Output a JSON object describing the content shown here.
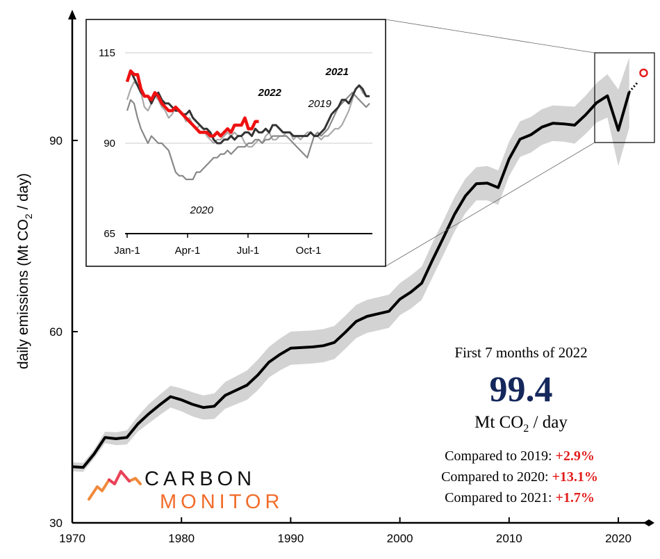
{
  "chart_data": [
    {
      "type": "line",
      "ylabel_prefix": "daily emissions (Mt CO",
      "ylabel_sub": "2",
      "ylabel_suffix": " / day)",
      "xlim": [
        1970,
        2022
      ],
      "ylim": [
        30,
        110
      ],
      "x_ticks": [
        1970,
        1980,
        1990,
        2000,
        2010,
        2020
      ],
      "y_ticks": [
        30,
        60,
        90
      ],
      "series": [
        {
          "x": [
            1970,
            1971,
            1972,
            1973,
            1974,
            1975,
            1976,
            1977,
            1978,
            1979,
            1980,
            1981,
            1982,
            1983,
            1984,
            1985,
            1986,
            1987,
            1988,
            1989,
            1990,
            1991,
            1992,
            1993,
            1994,
            1995,
            1996,
            1997,
            1998,
            1999,
            2000,
            2001,
            2002,
            2003,
            2004,
            2005,
            2006,
            2007,
            2008,
            2009,
            2010,
            2011,
            2012,
            2013,
            2014,
            2015,
            2016,
            2017,
            2018,
            2019,
            2020,
            2021
          ],
          "values": [
            38.8,
            38.7,
            40.8,
            43.4,
            43.2,
            43.4,
            45.5,
            47.1,
            48.5,
            49.8,
            49.3,
            48.6,
            48.1,
            48.3,
            50.0,
            50.8,
            51.6,
            53.2,
            55.2,
            56.4,
            57.4,
            57.5,
            57.6,
            57.8,
            58.3,
            59.9,
            61.6,
            62.4,
            62.8,
            63.2,
            65.1,
            66.2,
            67.6,
            71.3,
            74.8,
            78.4,
            81.3,
            83.2,
            83.3,
            82.6,
            87.1,
            90.2,
            90.9,
            92.1,
            92.7,
            92.6,
            92.4,
            94.0,
            95.9,
            97.0,
            91.6,
            97.6
          ]
        }
      ],
      "band_upper": [
        39.5,
        39.4,
        41.5,
        44.3,
        44.2,
        44.5,
        46.7,
        48.6,
        50.1,
        51.5,
        51.1,
        50.5,
        50.0,
        50.3,
        52.1,
        53.0,
        53.9,
        55.6,
        57.6,
        58.9,
        60.0,
        60.1,
        60.2,
        60.4,
        60.9,
        62.5,
        64.2,
        65.0,
        65.4,
        65.8,
        67.6,
        68.8,
        70.2,
        74.0,
        77.5,
        81.1,
        84.0,
        85.8,
        86.0,
        85.3,
        89.8,
        93.0,
        93.7,
        94.9,
        95.5,
        95.4,
        95.3,
        97.0,
        99.0,
        100.4,
        98.0,
        103.0
      ],
      "band_lower": [
        38.1,
        38.0,
        40.1,
        42.5,
        42.2,
        42.3,
        44.3,
        45.6,
        46.9,
        48.1,
        47.5,
        46.7,
        46.2,
        46.3,
        47.9,
        48.6,
        49.3,
        50.8,
        52.8,
        53.9,
        54.8,
        54.9,
        55.0,
        55.2,
        55.7,
        57.3,
        59.0,
        59.8,
        60.2,
        60.6,
        62.6,
        63.6,
        65.0,
        68.6,
        72.1,
        75.7,
        78.6,
        80.6,
        80.6,
        79.9,
        84.4,
        87.4,
        88.1,
        89.3,
        89.9,
        89.8,
        89.5,
        91.0,
        92.8,
        93.6,
        86.0,
        92.0
      ],
      "projection": {
        "x": 2022,
        "value": 99.4
      }
    },
    {
      "type": "line",
      "x_ticks": [
        "Jan-1",
        "Apr-1",
        "Jul-1",
        "Oct-1"
      ],
      "y_ticks": [
        65,
        90,
        115
      ],
      "ylim": [
        65,
        115
      ],
      "series": [
        {
          "name": "2019",
          "color": "#a9a9a9",
          "values": [
            102,
            105,
            107,
            106,
            104,
            100,
            99,
            101,
            103,
            102,
            100,
            99,
            97,
            98,
            100,
            99,
            98,
            96,
            97,
            95,
            94,
            95,
            94,
            92,
            91,
            90,
            91,
            91,
            92,
            93,
            92,
            93,
            92,
            92,
            90,
            89,
            89,
            90,
            91,
            90,
            92,
            93,
            91,
            91,
            92,
            92,
            93,
            93,
            91,
            92,
            91,
            92,
            93,
            93,
            92,
            92,
            91,
            92,
            92,
            93,
            94,
            94,
            95,
            97,
            99,
            102,
            105,
            106,
            104,
            103,
            103
          ]
        },
        {
          "name": "2020",
          "color": "#888888",
          "values": [
            99,
            102,
            101,
            97,
            94,
            92,
            90,
            92,
            91,
            90,
            90,
            89,
            88,
            85,
            82,
            81,
            81,
            80,
            80,
            80,
            82,
            82,
            83,
            84,
            85,
            86,
            86,
            87,
            87,
            88,
            87,
            88,
            89,
            89,
            89,
            90,
            90,
            91,
            91,
            90,
            91,
            91,
            92,
            92,
            92,
            92,
            92,
            91,
            90,
            89,
            88,
            87,
            86,
            89,
            92,
            93,
            92,
            93,
            94,
            96,
            98,
            100,
            101,
            102,
            103,
            104,
            103,
            102,
            101,
            100,
            101
          ]
        },
        {
          "name": "2021",
          "color": "#333333",
          "values": [
            107,
            110,
            108,
            106,
            104,
            103,
            103,
            101,
            103,
            104,
            102,
            101,
            101,
            100,
            99,
            99,
            98,
            98,
            99,
            97,
            96,
            95,
            94,
            94,
            93,
            91,
            90,
            90,
            91,
            91,
            92,
            91,
            92,
            92,
            93,
            93,
            92,
            94,
            93,
            93,
            94,
            93,
            95,
            95,
            94,
            93,
            93,
            93,
            92,
            92,
            92,
            92,
            92,
            93,
            92,
            92,
            93,
            94,
            96,
            98,
            99,
            100,
            102,
            102,
            101,
            103,
            105,
            106,
            105,
            103,
            103
          ]
        },
        {
          "name": "2022",
          "color": "#ee1111",
          "values": [
            107,
            110,
            109,
            109,
            105,
            103,
            103,
            102,
            104,
            103,
            101,
            100,
            99,
            99,
            100,
            99,
            98,
            97,
            96,
            95,
            94,
            93,
            93,
            93,
            92,
            92,
            93,
            92,
            93,
            94,
            93,
            95,
            95,
            95,
            97,
            94,
            94,
            96,
            96
          ]
        }
      ]
    }
  ],
  "info": {
    "heading": "First 7 months of 2022",
    "value": "99.4",
    "unit_prefix": "Mt CO",
    "unit_sub": "2",
    "unit_suffix": " / day",
    "comparisons": [
      {
        "label": "Compared to 2019:",
        "value": "+2.9%"
      },
      {
        "label": "Compared to 2020:",
        "value": "+13.1%"
      },
      {
        "label": "Compared to 2021:",
        "value": "+1.7%"
      }
    ],
    "value_color": "#15285c",
    "pct_color": "#e31b1b"
  },
  "logo": {
    "line1": "CARBON",
    "line2": "MONITOR",
    "icon": "mountain-line-logo-icon"
  }
}
